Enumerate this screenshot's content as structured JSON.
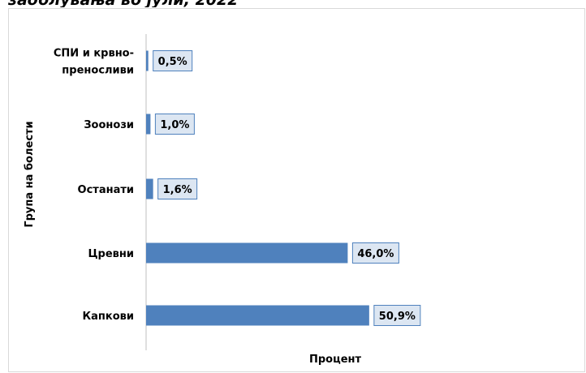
{
  "chart_data": {
    "type": "bar",
    "orientation": "horizontal",
    "title": "заболувања во јули, 2022",
    "xlabel": "Процент",
    "ylabel": "Група на болести",
    "categories": [
      [
        "СПИ и крвно-",
        "преносливи"
      ],
      [
        "Зоонози"
      ],
      [
        "Останати"
      ],
      [
        "Цревни"
      ],
      [
        "Капкови"
      ]
    ],
    "values": [
      0.5,
      1.0,
      1.6,
      46.0,
      50.9
    ],
    "value_labels": [
      "0,5%",
      "1,0%",
      "1,6%",
      "46,0%",
      "50,9%"
    ],
    "xlim": [
      0,
      60
    ],
    "grid": false,
    "legend": "none",
    "bar_color": "#4f81bd",
    "label_box_fill": "#dce6f2",
    "label_box_border": "#4f81bd"
  }
}
